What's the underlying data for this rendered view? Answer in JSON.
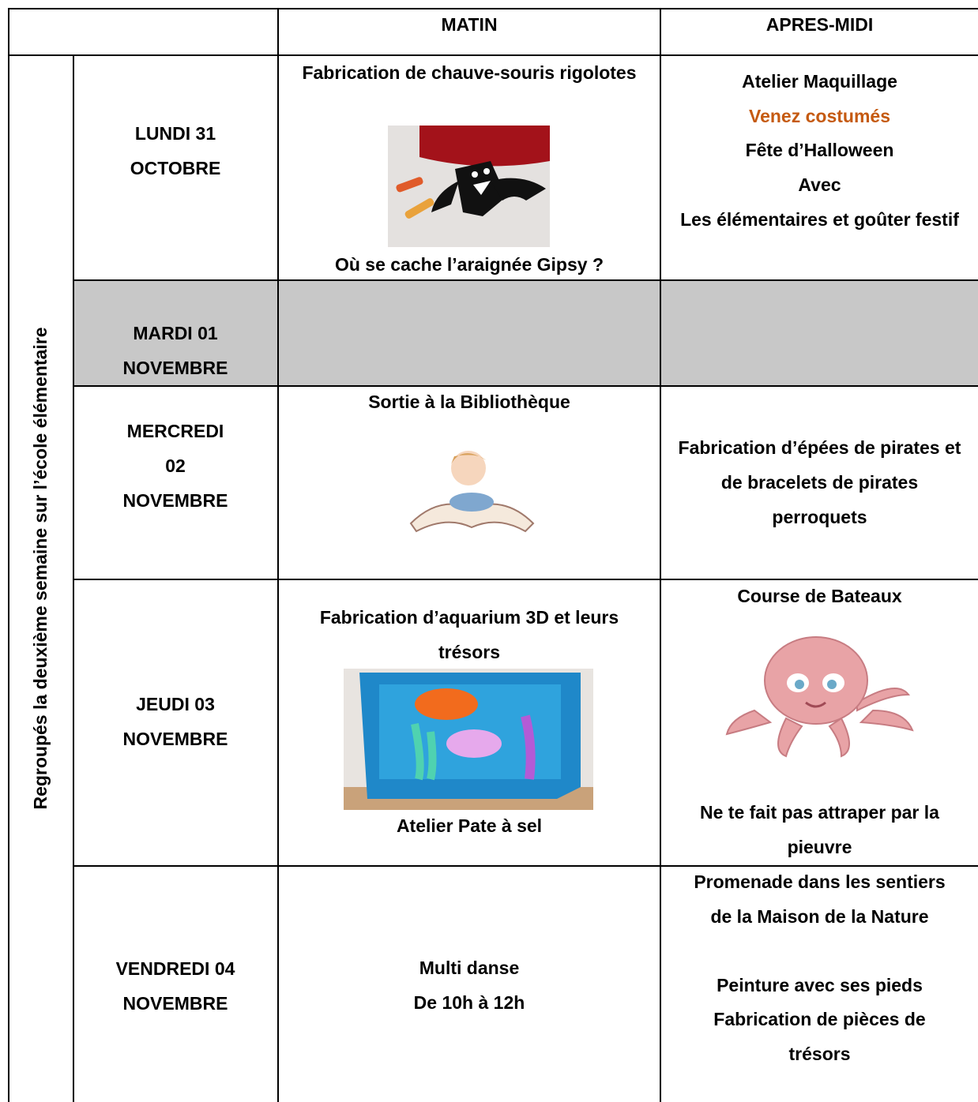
{
  "header": {
    "matin": "MATIN",
    "apres_midi": "APRES-MIDI"
  },
  "side_label": "Regroupés la deuxième semaine sur l’école élémentaire",
  "highlight_color": "#c55a11",
  "rows": [
    {
      "day": [
        "LUNDI 31",
        "OCTOBRE"
      ],
      "matin": [
        "Fabrication de chauve-souris rigolotes",
        "Où se cache l’araignée Gipsy ?"
      ],
      "apres_midi": [
        "Atelier Maquillage",
        "Venez costumés",
        "Fête d’Halloween",
        "Avec",
        "Les élémentaires et goûter festif"
      ]
    },
    {
      "day": [
        "MARDI 01",
        "NOVEMBRE"
      ]
    },
    {
      "day": [
        "MERCREDI",
        "02",
        "NOVEMBRE"
      ],
      "matin": [
        "Sortie à la Bibliothèque"
      ],
      "apres_midi": [
        "Fabrication d’épées de pirates et de bracelets de pirates perroquets"
      ]
    },
    {
      "day": [
        "JEUDI 03",
        "NOVEMBRE"
      ],
      "matin": [
        "Fabrication d’aquarium 3D et leurs trésors",
        "Atelier Pate à sel"
      ],
      "apres_midi": [
        "Course de Bateaux",
        "Ne te fait pas attraper par la pieuvre"
      ]
    },
    {
      "day": [
        "VENDREDI 04",
        "NOVEMBRE"
      ],
      "matin": [
        "Multi danse",
        "De 10h à 12h"
      ],
      "apres_midi": [
        "Promenade dans les sentiers de la Maison de la Nature",
        "Peinture avec ses pieds",
        "Fabrication de pièces de trésors"
      ]
    }
  ]
}
